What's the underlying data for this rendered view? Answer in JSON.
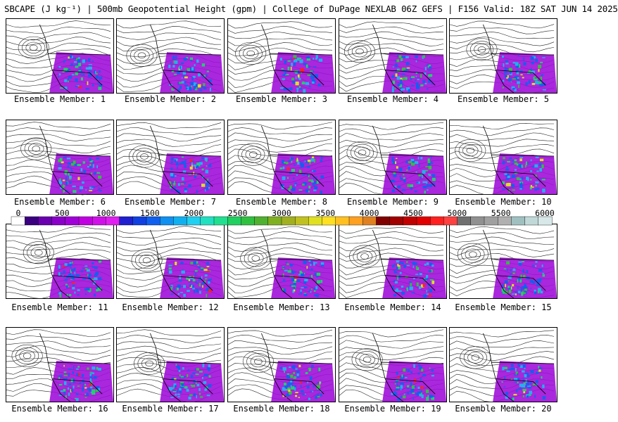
{
  "title": "SBCAPE (J kg⁻¹) | 500mb Geopotential Height (gpm) | College of DuPage NEXLAB 06Z GEFS | F156 Valid: 18Z SAT JUN 14 2025",
  "members": [
    "Ensemble Member: 1",
    "Ensemble Member: 2",
    "Ensemble Member: 3",
    "Ensemble Member: 4",
    "Ensemble Member: 5",
    "Ensemble Member: 6",
    "Ensemble Member: 7",
    "Ensemble Member: 8",
    "Ensemble Member: 9",
    "Ensemble Member: 10",
    "Ensemble Member: 11",
    "Ensemble Member: 12",
    "Ensemble Member: 13",
    "Ensemble Member: 14",
    "Ensemble Member: 15",
    "Ensemble Member: 16",
    "Ensemble Member: 17",
    "Ensemble Member: 18",
    "Ensemble Member: 19",
    "Ensemble Member: 20"
  ],
  "colorbar": {
    "ticks": [
      "0",
      "500",
      "1000",
      "1500",
      "2000",
      "2500",
      "3000",
      "3500",
      "4000",
      "4500",
      "5000",
      "5500",
      "6000"
    ],
    "min": 0,
    "max": 6000,
    "colors": [
      "#ffffff",
      "#3a0080",
      "#6a00b0",
      "#8a00c8",
      "#a000d8",
      "#c000e0",
      "#d010e8",
      "#e020f0",
      "#2020d0",
      "#1040e0",
      "#1060f0",
      "#1090f0",
      "#10b0f0",
      "#20d0f0",
      "#20e0c0",
      "#20e090",
      "#20d060",
      "#30c040",
      "#50b030",
      "#80b020",
      "#a0b020",
      "#c0c020",
      "#e0e020",
      "#ffe020",
      "#ffc020",
      "#ffa020",
      "#e08020",
      "#800000",
      "#a00000",
      "#c00000",
      "#e00000",
      "#ff2020",
      "#ff4040",
      "#707070",
      "#909090",
      "#a0a0a0",
      "#b0b0b0",
      "#a0c0c0",
      "#c0d8d8",
      "#d8e8e8"
    ]
  }
}
